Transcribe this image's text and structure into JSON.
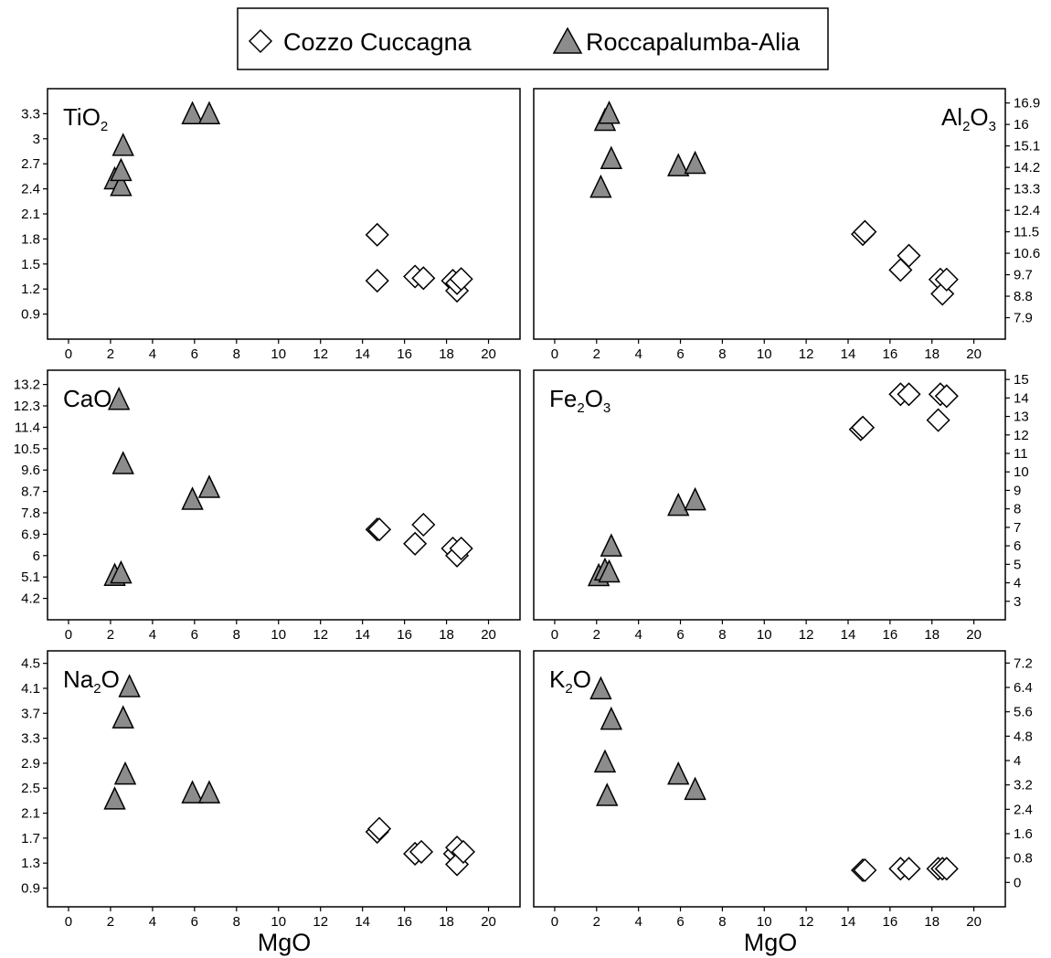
{
  "legend": {
    "entries": [
      {
        "label": "Cozzo Cuccagna",
        "marker": "diamond-open-icon",
        "color": "#ffffff"
      },
      {
        "label": "Roccapalumba-Alia",
        "marker": "triangle-filled-icon",
        "color": "#8c8c8c"
      }
    ],
    "placement": "top-center"
  },
  "shared_xlabel": "MgO",
  "chart_data": [
    {
      "type": "scatter",
      "title": "TiO2",
      "title_main": "TiO",
      "title_sub": "2",
      "title_tail": "",
      "title_align": "left",
      "yaxis_side": "left",
      "xlabel": "",
      "xlim": [
        -1,
        21.5
      ],
      "xticks": [
        "0",
        "2",
        "4",
        "6",
        "8",
        "10",
        "12",
        "14",
        "16",
        "18",
        "20"
      ],
      "ylim": [
        0.6,
        3.6
      ],
      "yticks": [
        "0.9",
        "1.2",
        "1.5",
        "1.8",
        "2.1",
        "2.4",
        "2.7",
        "3",
        "3.3"
      ],
      "series": [
        {
          "name": "Cozzo Cuccagna",
          "marker": "diamond",
          "x": [
            14.7,
            14.7,
            16.5,
            16.9,
            18.3,
            18.5,
            18.5,
            18.7
          ],
          "y": [
            1.85,
            1.3,
            1.35,
            1.33,
            1.3,
            1.18,
            1.27,
            1.32
          ]
        },
        {
          "name": "Roccapalumba-Alia",
          "marker": "triangle",
          "x": [
            2.2,
            2.5,
            2.5,
            2.6,
            5.9,
            6.7
          ],
          "y": [
            2.5,
            2.42,
            2.6,
            2.9,
            3.28,
            3.28
          ]
        }
      ]
    },
    {
      "type": "scatter",
      "title": "Al2O3",
      "title_main": "Al",
      "title_sub": "2",
      "title_tail": "O3",
      "title_align": "right",
      "yaxis_side": "right",
      "xlabel": "",
      "xlim": [
        -1,
        21.5
      ],
      "xticks": [
        "0",
        "2",
        "4",
        "6",
        "8",
        "10",
        "12",
        "14",
        "16",
        "18",
        "20"
      ],
      "ylim": [
        7.0,
        17.5
      ],
      "yticks": [
        "7.9",
        "8.8",
        "9.7",
        "10.6",
        "11.5",
        "12.4",
        "13.3",
        "14.2",
        "15.1",
        "16",
        "16.9"
      ],
      "series": [
        {
          "name": "Cozzo Cuccagna",
          "marker": "diamond",
          "x": [
            14.7,
            14.8,
            16.5,
            16.9,
            18.4,
            18.5,
            18.7
          ],
          "y": [
            11.4,
            11.5,
            9.9,
            10.5,
            9.5,
            8.9,
            9.5
          ]
        },
        {
          "name": "Roccapalumba-Alia",
          "marker": "triangle",
          "x": [
            2.2,
            2.4,
            2.6,
            2.7,
            5.9,
            6.7
          ],
          "y": [
            13.3,
            16.1,
            16.4,
            14.5,
            14.2,
            14.3
          ]
        }
      ]
    },
    {
      "type": "scatter",
      "title": "CaO",
      "title_main": "CaO",
      "title_sub": "",
      "title_tail": "",
      "title_align": "left",
      "yaxis_side": "left",
      "xlabel": "",
      "xlim": [
        -1,
        21.5
      ],
      "xticks": [
        "0",
        "2",
        "4",
        "6",
        "8",
        "10",
        "12",
        "14",
        "16",
        "18",
        "20"
      ],
      "ylim": [
        3.3,
        13.8
      ],
      "yticks": [
        "4.2",
        "5.1",
        "6",
        "6.9",
        "7.8",
        "8.7",
        "9.6",
        "10.5",
        "11.4",
        "12.3",
        "13.2"
      ],
      "series": [
        {
          "name": "Cozzo Cuccagna",
          "marker": "diamond",
          "x": [
            14.7,
            14.8,
            16.5,
            16.9,
            18.3,
            18.5,
            18.7
          ],
          "y": [
            7.1,
            7.1,
            6.5,
            7.3,
            6.3,
            6.0,
            6.3
          ]
        },
        {
          "name": "Roccapalumba-Alia",
          "marker": "triangle",
          "x": [
            2.2,
            2.4,
            2.5,
            2.6,
            5.9,
            6.7
          ],
          "y": [
            5.1,
            12.5,
            5.2,
            9.8,
            8.3,
            8.8
          ]
        }
      ]
    },
    {
      "type": "scatter",
      "title": "Fe2O3",
      "title_main": "Fe",
      "title_sub": "2",
      "title_tail": "O3",
      "title_align": "left",
      "yaxis_side": "right",
      "xlabel": "",
      "xlim": [
        -1,
        21.5
      ],
      "xticks": [
        "0",
        "2",
        "4",
        "6",
        "8",
        "10",
        "12",
        "14",
        "16",
        "18",
        "20"
      ],
      "ylim": [
        2.0,
        15.5
      ],
      "yticks": [
        "3",
        "4",
        "5",
        "6",
        "7",
        "8",
        "9",
        "10",
        "11",
        "12",
        "13",
        "14",
        "15"
      ],
      "series": [
        {
          "name": "Cozzo Cuccagna",
          "marker": "diamond",
          "x": [
            14.6,
            14.7,
            16.5,
            16.9,
            18.3,
            18.4,
            18.7
          ],
          "y": [
            12.3,
            12.4,
            14.2,
            14.2,
            12.8,
            14.2,
            14.1
          ]
        },
        {
          "name": "Roccapalumba-Alia",
          "marker": "triangle",
          "x": [
            2.1,
            2.4,
            2.6,
            2.7,
            5.9,
            6.7
          ],
          "y": [
            4.3,
            4.6,
            4.5,
            5.9,
            8.1,
            8.4
          ]
        }
      ]
    },
    {
      "type": "scatter",
      "title": "Na2O",
      "title_main": "Na",
      "title_sub": "2",
      "title_tail": "O",
      "title_align": "left",
      "yaxis_side": "left",
      "xlabel": "MgO",
      "xlim": [
        -1,
        21.5
      ],
      "xticks": [
        "0",
        "2",
        "4",
        "6",
        "8",
        "10",
        "12",
        "14",
        "16",
        "18",
        "20"
      ],
      "ylim": [
        0.6,
        4.7
      ],
      "yticks": [
        "0.9",
        "1.3",
        "1.7",
        "2.1",
        "2.5",
        "2.9",
        "3.3",
        "3.7",
        "4.1",
        "4.5"
      ],
      "series": [
        {
          "name": "Cozzo Cuccagna",
          "marker": "diamond",
          "x": [
            14.7,
            14.8,
            16.5,
            16.8,
            18.4,
            18.5,
            18.5,
            18.8
          ],
          "y": [
            1.8,
            1.85,
            1.45,
            1.48,
            1.45,
            1.55,
            1.28,
            1.48
          ]
        },
        {
          "name": "Roccapalumba-Alia",
          "marker": "triangle",
          "x": [
            2.2,
            2.6,
            2.7,
            2.9,
            5.9,
            6.7
          ],
          "y": [
            2.3,
            3.6,
            2.7,
            4.1,
            2.4,
            2.4
          ]
        }
      ]
    },
    {
      "type": "scatter",
      "title": "K2O",
      "title_main": "K",
      "title_sub": "2",
      "title_tail": "O",
      "title_align": "left",
      "yaxis_side": "right",
      "xlabel": "MgO",
      "xlim": [
        -1,
        21.5
      ],
      "xticks": [
        "0",
        "2",
        "4",
        "6",
        "8",
        "10",
        "12",
        "14",
        "16",
        "18",
        "20"
      ],
      "ylim": [
        -0.8,
        7.6
      ],
      "yticks": [
        "0",
        "0.8",
        "1.6",
        "2.4",
        "3.2",
        "4",
        "4.8",
        "5.6",
        "6.4",
        "7.2"
      ],
      "series": [
        {
          "name": "Cozzo Cuccagna",
          "marker": "diamond",
          "x": [
            14.7,
            14.8,
            16.5,
            16.9,
            18.3,
            18.5,
            18.7
          ],
          "y": [
            0.4,
            0.4,
            0.45,
            0.45,
            0.45,
            0.45,
            0.45
          ]
        },
        {
          "name": "Roccapalumba-Alia",
          "marker": "triangle",
          "x": [
            2.2,
            2.4,
            2.5,
            2.7,
            5.9,
            6.7
          ],
          "y": [
            6.3,
            3.9,
            2.8,
            5.3,
            3.5,
            3.0
          ]
        }
      ]
    }
  ]
}
